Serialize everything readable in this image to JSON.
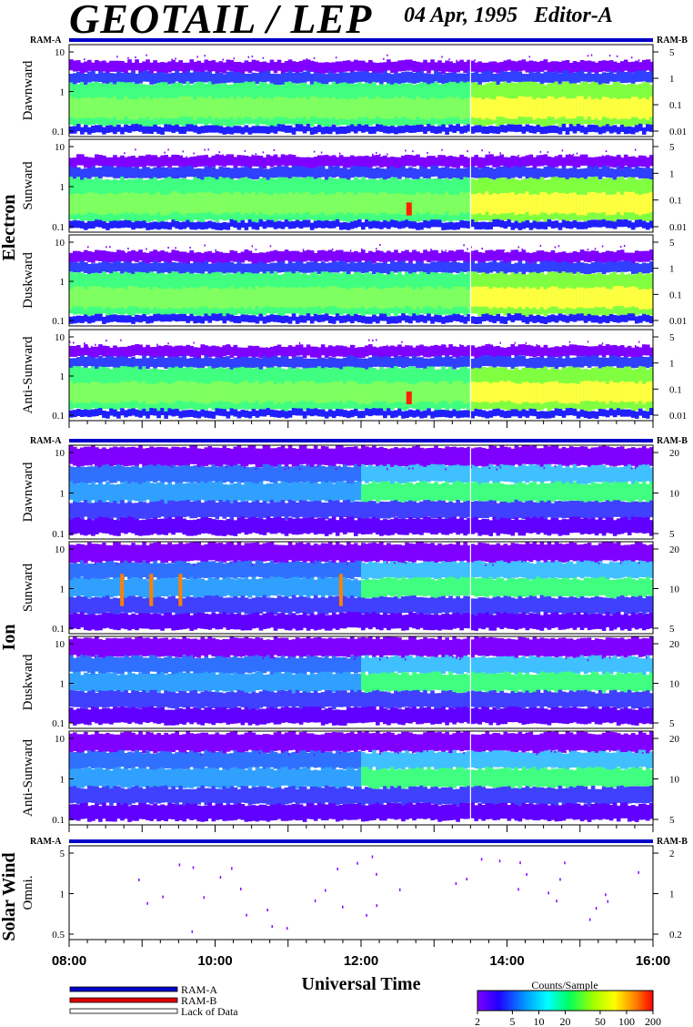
{
  "header": {
    "title": "GEOTAIL / LEP",
    "date": "04 Apr, 1995",
    "editor": "Editor-A"
  },
  "chart_data": {
    "type": "heatmap",
    "title": "GEOTAIL / LEP",
    "xlabel": "Universal Time",
    "x_ticks": [
      "08:00",
      "10:00",
      "12:00",
      "14:00",
      "16:00"
    ],
    "x_range_hours": [
      8,
      16
    ],
    "data_gap_hour": 13.5,
    "ram_labels": {
      "left": "RAM-A",
      "right": "RAM-B"
    },
    "sections": [
      {
        "name": "Electron",
        "left_ticks": [
          "0.1",
          "1",
          "10"
        ],
        "right_ticks": [
          "0.01",
          "0.1",
          "1",
          "5"
        ],
        "panels": [
          "Dawnward",
          "Sunward",
          "Duskward",
          "Anti-Sunward"
        ]
      },
      {
        "name": "Ion",
        "left_ticks": [
          "0.1",
          "1",
          "10"
        ],
        "right_ticks": [
          "5",
          "10",
          "20"
        ],
        "panels": [
          "Dawnward",
          "Sunward",
          "Duskward",
          "Anti-Sunward"
        ]
      },
      {
        "name": "Solar Wind",
        "left_ticks": [
          "0.5",
          "1",
          "5"
        ],
        "right_ticks": [
          "0.2",
          "1",
          "2"
        ],
        "panels": [
          "Omni."
        ]
      }
    ],
    "legend": {
      "items": [
        {
          "label": "RAM-A",
          "color": "#0000c8"
        },
        {
          "label": "RAM-B",
          "color": "#e00000"
        },
        {
          "label": "Lack of Data",
          "color": "#ffffff"
        }
      ]
    },
    "colorbar": {
      "title": "Counts/Sample",
      "ticks": [
        "2",
        "5",
        "10",
        "20",
        "50",
        "100",
        "200"
      ],
      "range": [
        2,
        200
      ],
      "scale": "log"
    }
  }
}
